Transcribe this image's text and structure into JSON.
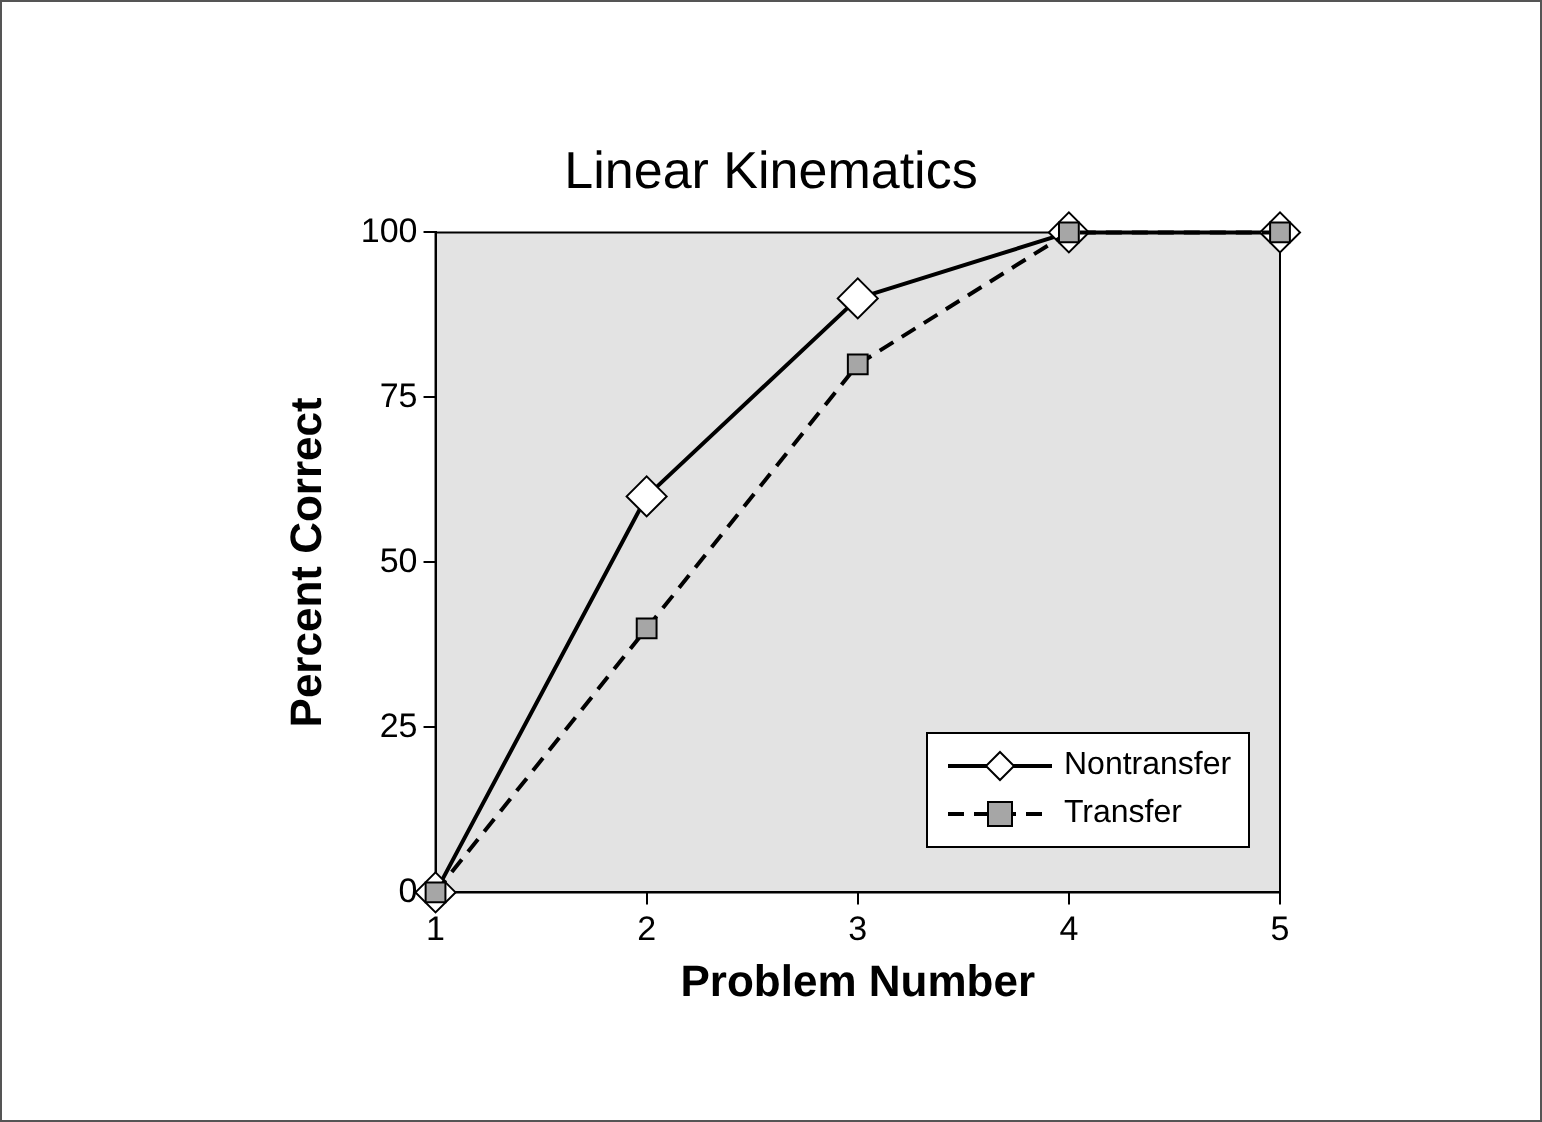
{
  "chart_data": {
    "type": "line",
    "title": "Linear Kinematics",
    "xlabel": "Problem Number",
    "ylabel": "Percent Correct",
    "x": [
      1,
      2,
      3,
      4,
      5
    ],
    "series": [
      {
        "name": "Nontransfer",
        "color": "#000000",
        "values": [
          0,
          60,
          90,
          100,
          100
        ],
        "marker": "diamond",
        "line_style": "solid"
      },
      {
        "name": "Transfer",
        "color": "#000000",
        "values": [
          0,
          40,
          80,
          100,
          100
        ],
        "marker": "square",
        "line_style": "dashed"
      }
    ],
    "xlim": [
      1,
      5
    ],
    "xticks": [
      1,
      2,
      3,
      4,
      5
    ],
    "ylim": [
      0,
      100
    ],
    "yticks": [
      0,
      25,
      50,
      75,
      100
    ],
    "grid": false,
    "legend": "bottom right"
  }
}
